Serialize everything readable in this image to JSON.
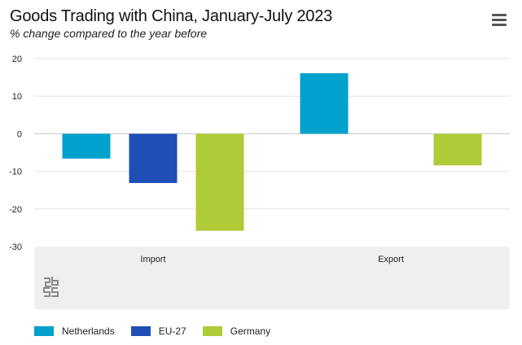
{
  "header": {
    "title": "Goods Trading with China, January-July 2023",
    "subtitle": "% change compared to the year before",
    "menu_icon": "hamburger-menu-icon"
  },
  "chart_data": {
    "type": "bar",
    "title": "Goods Trading with China, January-July 2023",
    "subtitle": "% change compared to the year before",
    "categories": [
      "Import",
      "Export"
    ],
    "series": [
      {
        "name": "Netherlands",
        "color": "#00a1cd",
        "values": [
          -6.6,
          16.1
        ]
      },
      {
        "name": "EU-27",
        "color": "#1f4fb6",
        "values": [
          -13.1,
          0
        ]
      },
      {
        "name": "Germany",
        "color": "#afcb37",
        "values": [
          -25.8,
          -8.4
        ]
      }
    ],
    "yticks": [
      20,
      10,
      0,
      -10,
      -20,
      -30
    ],
    "ylim": [
      -30,
      20
    ],
    "grid": true,
    "legend_position": "bottom-left",
    "logo_icon": "cbs-logo-icon"
  }
}
